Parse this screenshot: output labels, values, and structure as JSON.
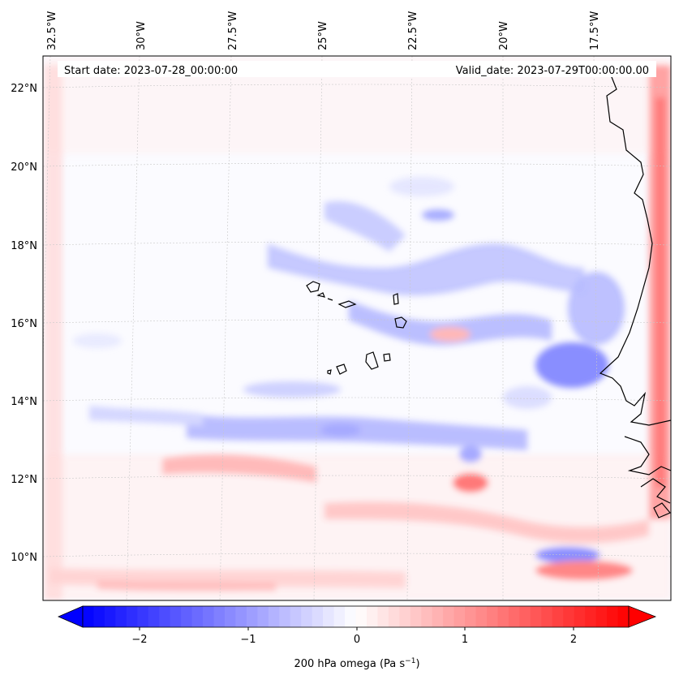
{
  "map": {
    "start_date": "Start date: 2023-07-28_00:00:00",
    "valid_date": "Valid_date: 2023-07-29T00:00:00.00",
    "lon_labels": [
      "32.5°W",
      "30°W",
      "27.5°W",
      "25°W",
      "22.5°W",
      "20°W",
      "17.5°W"
    ],
    "lat_labels": [
      "22°N",
      "20°N",
      "18°N",
      "16°N",
      "14°N",
      "12°N",
      "10°N"
    ]
  },
  "colorbar": {
    "tick_labels": [
      "−2",
      "−1",
      "0",
      "1",
      "2"
    ],
    "label_main": "200 hPa omega (Pa s",
    "label_exp": "−1",
    "label_end": ")",
    "vmin": -2.6,
    "vmax": 2.6
  },
  "colors": {
    "negative": "#0000ff",
    "positive": "#ff0000",
    "neutral": "#ffffff",
    "coast": "#000000"
  }
}
